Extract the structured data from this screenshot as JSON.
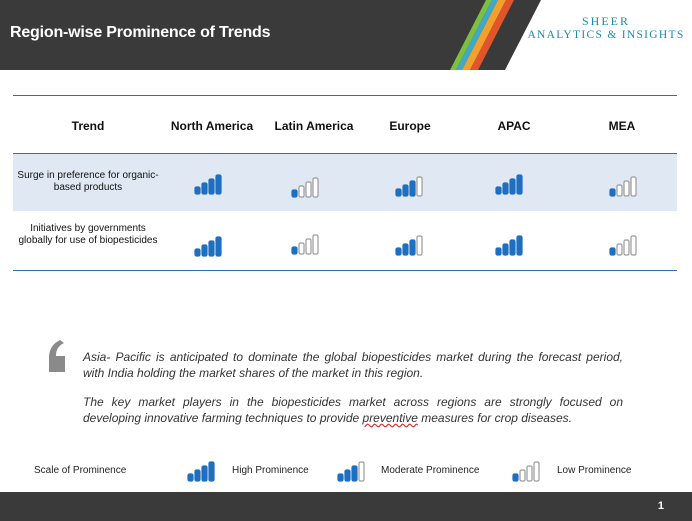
{
  "header": {
    "title": "Region-wise Prominence of Trends",
    "logo_line1": "SHEER",
    "logo_line2": "ANALYTICS & INSIGHTS",
    "stripe_colors": [
      "#7fbf3f",
      "#3fa9c9",
      "#f2a12e",
      "#e2542a"
    ]
  },
  "table": {
    "headers": [
      "Trend",
      "North America",
      "Latin America",
      "Europe",
      "APAC",
      "MEA"
    ],
    "rows": [
      {
        "label": "Surge in preference for organic-based products",
        "levels": [
          "high",
          "low",
          "moderate",
          "high",
          "low"
        ]
      },
      {
        "label": "Initiatives by governments globally for use of biopesticides",
        "levels": [
          "high",
          "low",
          "moderate",
          "high",
          "low"
        ]
      }
    ]
  },
  "quote": {
    "p1": "Asia- Pacific is anticipated to dominate the global biopesticides market during the forecast period, with India holding the market shares of the market in this region.",
    "p2_before": "The key market players in the biopesticides market across regions are strongly focused on developing innovative farming techniques to provide ",
    "p2_underlined": "preventive",
    "p2_after": " measures for crop diseases."
  },
  "legend": {
    "title": "Scale of Prominence",
    "high": "High Prominence",
    "moderate": "Moderate Prominence",
    "low": "Low Prominence"
  },
  "colors": {
    "blue": "#1f6fc0",
    "gray": "#9a9a9a",
    "header_bg": "#3a3a3a",
    "row_shade": "#dfe8f3"
  },
  "footer": {
    "page_number": "1"
  }
}
